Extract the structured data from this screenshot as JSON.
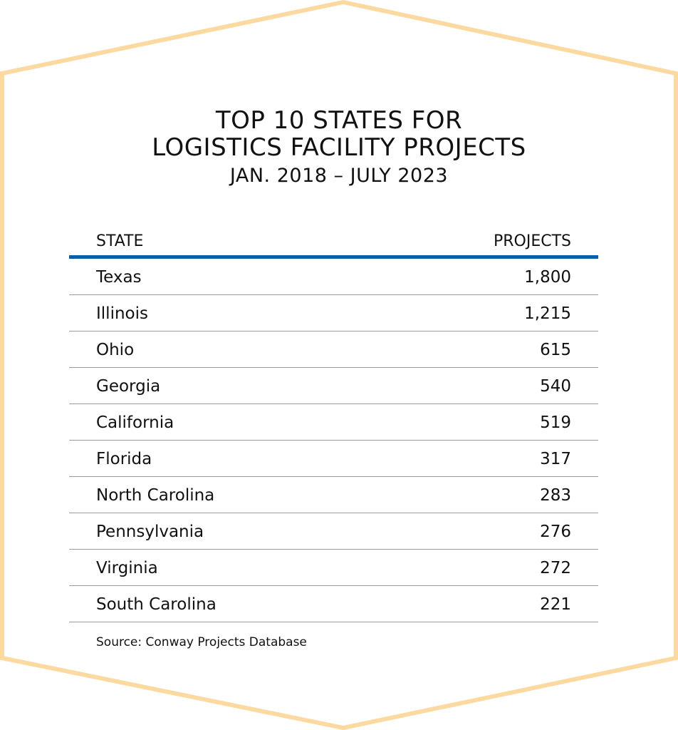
{
  "colors": {
    "frame": "#fcd9a0",
    "header_rule": "#0d5ea0",
    "row_rule": "#9a9a9a",
    "text": "#111111"
  },
  "title_lines": [
    "TOP 10 STATES FOR",
    "LOGISTICS FACILITY PROJECTS"
  ],
  "subtitle": "JAN. 2018 – JULY 2023",
  "table": {
    "headers": {
      "state": "STATE",
      "projects": "PROJECTS"
    },
    "rows": [
      {
        "state": "Texas",
        "projects": "1,800"
      },
      {
        "state": "Illinois",
        "projects": "1,215"
      },
      {
        "state": "Ohio",
        "projects": "615"
      },
      {
        "state": "Georgia",
        "projects": "540"
      },
      {
        "state": "California",
        "projects": "519"
      },
      {
        "state": "Florida",
        "projects": "317"
      },
      {
        "state": "North Carolina",
        "projects": "283"
      },
      {
        "state": "Pennsylvania",
        "projects": "276"
      },
      {
        "state": "Virginia",
        "projects": "272"
      },
      {
        "state": "South Carolina",
        "projects": "221"
      }
    ]
  },
  "source": "Source: Conway Projects Database",
  "chart_data": {
    "type": "table",
    "title": "TOP 10 STATES FOR LOGISTICS FACILITY PROJECTS",
    "subtitle": "JAN. 2018 – JULY 2023",
    "columns": [
      "STATE",
      "PROJECTS"
    ],
    "categories": [
      "Texas",
      "Illinois",
      "Ohio",
      "Georgia",
      "California",
      "Florida",
      "North Carolina",
      "Pennsylvania",
      "Virginia",
      "South Carolina"
    ],
    "values": [
      1800,
      1215,
      615,
      540,
      519,
      317,
      283,
      276,
      272,
      221
    ]
  }
}
